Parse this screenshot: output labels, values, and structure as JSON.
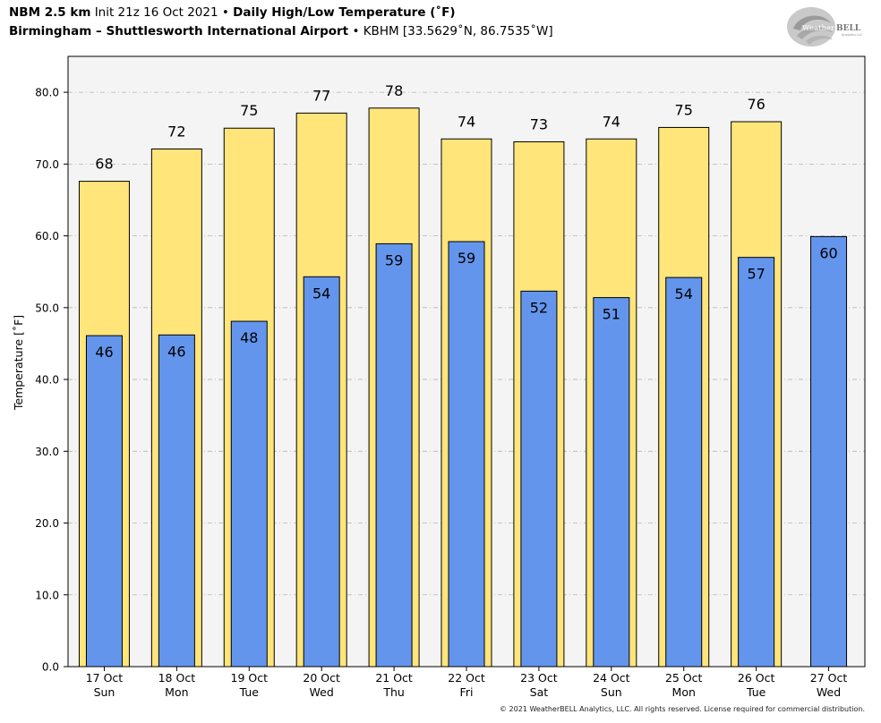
{
  "header": {
    "model": "NBM 2.5 km",
    "init": "Init 21z 16 Oct 2021",
    "product": "Daily High/Low Temperature (˚F)",
    "location": "Birmingham – Shuttlesworth International Airport",
    "station": "KBHM [33.5629˚N, 86.7535˚W]",
    "bullet": "•"
  },
  "logo": {
    "text_weather": "Weather",
    "text_bell": "BELL",
    "sub": "Analytics LLC"
  },
  "copyright": "© 2021 WeatherBELL Analytics, LLC. All rights reserved. License required for commercial distribution.",
  "chart_data": {
    "type": "bar",
    "ylabel": "Temperature [˚F]",
    "xlabel": "",
    "ylim": [
      0,
      85
    ],
    "yticks": [
      "0.0",
      "10.0",
      "20.0",
      "30.0",
      "40.0",
      "50.0",
      "60.0",
      "70.0",
      "80.0"
    ],
    "grid": true,
    "categories": [
      [
        "17 Oct",
        "Sun"
      ],
      [
        "18 Oct",
        "Mon"
      ],
      [
        "19 Oct",
        "Tue"
      ],
      [
        "20 Oct",
        "Wed"
      ],
      [
        "21 Oct",
        "Thu"
      ],
      [
        "22 Oct",
        "Fri"
      ],
      [
        "23 Oct",
        "Sat"
      ],
      [
        "24 Oct",
        "Sun"
      ],
      [
        "25 Oct",
        "Mon"
      ],
      [
        "26 Oct",
        "Tue"
      ],
      [
        "27 Oct",
        "Wed"
      ]
    ],
    "series": [
      {
        "values": [
          67.6,
          72.1,
          75.0,
          77.1,
          77.8,
          73.5,
          73.1,
          73.5,
          75.1,
          75.9,
          null
        ],
        "labels": [
          "68",
          "72",
          "75",
          "77",
          "78",
          "74",
          "73",
          "74",
          "75",
          "76",
          ""
        ],
        "color": "#FFE57A"
      },
      {
        "values": [
          46.1,
          46.2,
          48.1,
          54.3,
          58.9,
          59.2,
          52.3,
          51.4,
          54.2,
          57.0,
          59.9
        ],
        "labels": [
          "46",
          "46",
          "48",
          "54",
          "59",
          "59",
          "52",
          "51",
          "54",
          "57",
          "60"
        ],
        "color": "#6495ED"
      }
    ]
  }
}
